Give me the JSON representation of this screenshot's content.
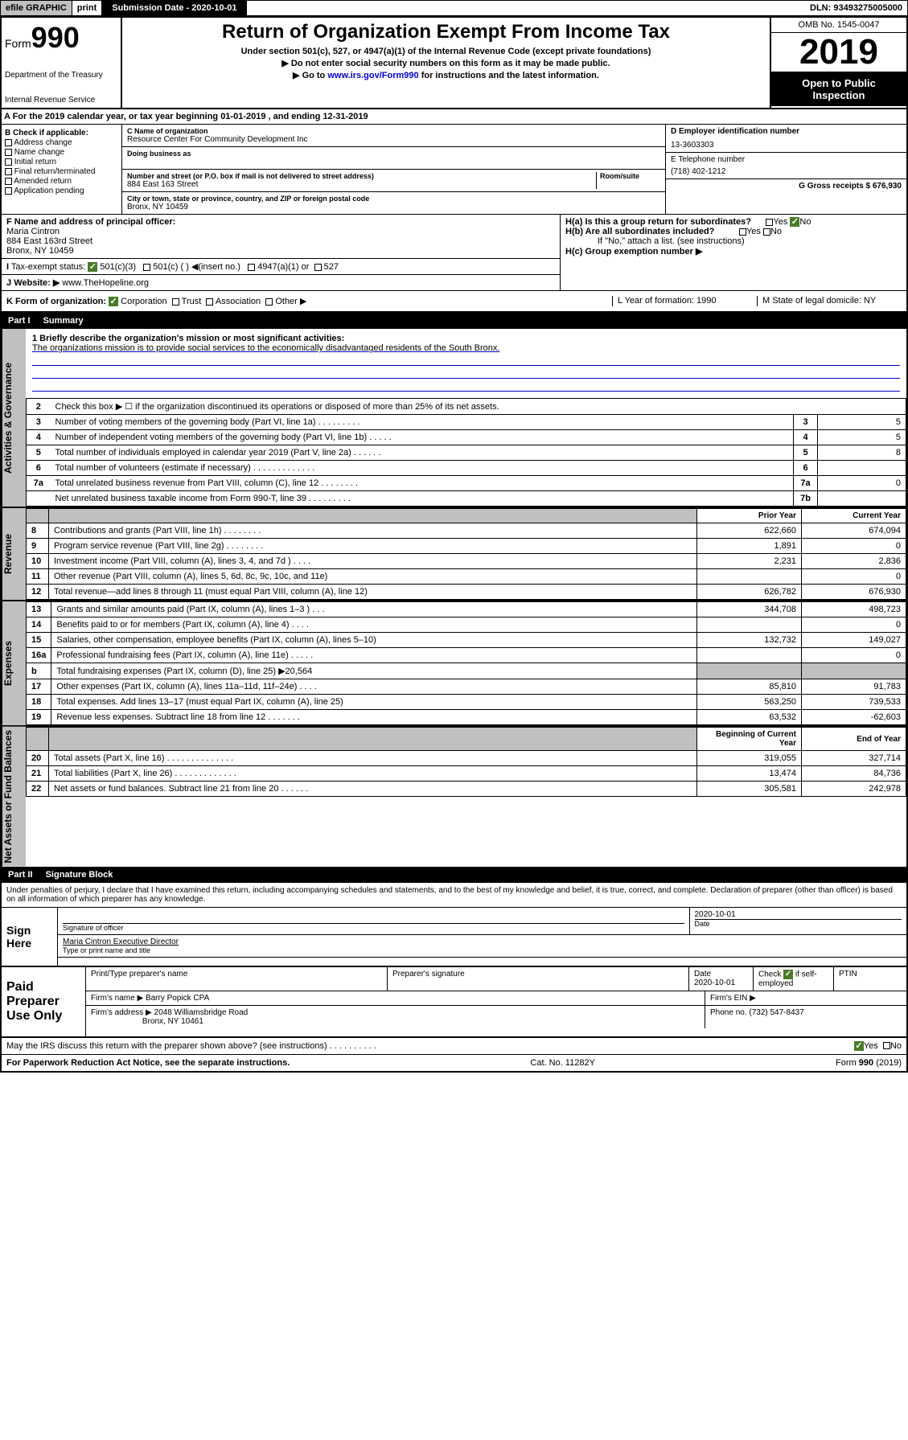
{
  "topbar": {
    "efile": "efile GRAPHIC",
    "print": "print",
    "subdate_label": "Submission Date - 2020-10-01",
    "dln": "DLN: 93493275005000"
  },
  "header": {
    "form_prefix": "Form",
    "form_number": "990",
    "dept": "Department of the Treasury",
    "irs": "Internal Revenue Service",
    "title": "Return of Organization Exempt From Income Tax",
    "sub1": "Under section 501(c), 527, or 4947(a)(1) of the Internal Revenue Code (except private foundations)",
    "sub2": "▶ Do not enter social security numbers on this form as it may be made public.",
    "sub3": "▶ Go to www.irs.gov/Form990 for instructions and the latest information.",
    "omb": "OMB No. 1545-0047",
    "year": "2019",
    "open": "Open to Public Inspection"
  },
  "row_a": "A For the 2019 calendar year, or tax year beginning 01-01-2019   , and ending 12-31-2019",
  "addr": {
    "b_label": "B Check if applicable:",
    "checks": [
      "Address change",
      "Name change",
      "Initial return",
      "Final return/terminated",
      "Amended return",
      "Application pending"
    ],
    "c_label": "C Name of organization",
    "org_name": "Resource Center For Community Development Inc",
    "dba_label": "Doing business as",
    "street_label": "Number and street (or P.O. box if mail is not delivered to street address)",
    "room_label": "Room/suite",
    "street": "884 East 163 Street",
    "city_label": "City or town, state or province, country, and ZIP or foreign postal code",
    "city": "Bronx, NY  10459",
    "d_label": "D Employer identification number",
    "ein": "13-3603303",
    "e_label": "E Telephone number",
    "phone": "(718) 402-1212",
    "g_label": "G Gross receipts $ 676,930"
  },
  "fij": {
    "f_label": "F  Name and address of principal officer:",
    "f_name": "Maria Cintron",
    "f_addr1": "884 East 163rd Street",
    "f_addr2": "Bronx, NY  10459",
    "i_label": "Tax-exempt status:",
    "i_501c3": "501(c)(3)",
    "i_501c": "501(c) (  ) ◀(insert no.)",
    "i_4947": "4947(a)(1) or",
    "i_527": "527",
    "j_label": "Website: ▶",
    "j_site": "www.TheHopeline.org",
    "ha": "H(a)  Is this a group return for subordinates?",
    "hb": "H(b)  Are all subordinates included?",
    "hb_note": "If \"No,\" attach a list. (see instructions)",
    "hc": "H(c)  Group exemption number ▶",
    "yes": "Yes",
    "no": "No"
  },
  "klm": {
    "k": "K Form of organization:",
    "k_opts": [
      "Corporation",
      "Trust",
      "Association",
      "Other ▶"
    ],
    "l": "L Year of formation: 1990",
    "m": "M State of legal domicile: NY"
  },
  "part1": {
    "label": "Part I",
    "title": "Summary"
  },
  "side_labels": {
    "ag": "Activities & Governance",
    "rev": "Revenue",
    "exp": "Expenses",
    "net": "Net Assets or Fund Balances"
  },
  "mission": {
    "q1": "1  Briefly describe the organization's mission or most significant activities:",
    "text": "The organizations mission is to provide social services to the economically disadvantaged residents of the South Bronx."
  },
  "gov_rows": [
    {
      "n": "2",
      "desc": "Check this box ▶ ☐  if the organization discontinued its operations or disposed of more than 25% of its net assets."
    },
    {
      "n": "3",
      "desc": "Number of voting members of the governing body (Part VI, line 1a)  .   .   .   .   .   .   .   .   .",
      "box": "3",
      "val": "5"
    },
    {
      "n": "4",
      "desc": "Number of independent voting members of the governing body (Part VI, line 1b)  .   .   .   .   .",
      "box": "4",
      "val": "5"
    },
    {
      "n": "5",
      "desc": "Total number of individuals employed in calendar year 2019 (Part V, line 2a)  .   .   .   .   .   .",
      "box": "5",
      "val": "8"
    },
    {
      "n": "6",
      "desc": "Total number of volunteers (estimate if necessary)  .   .   .   .   .   .   .   .   .   .   .   .   .",
      "box": "6",
      "val": ""
    },
    {
      "n": "7a",
      "desc": "Total unrelated business revenue from Part VIII, column (C), line 12  .   .   .   .   .   .   .   .",
      "box": "7a",
      "val": "0"
    },
    {
      "n": "",
      "desc": "Net unrelated business taxable income from Form 990-T, line 39  .   .   .   .   .   .   .   .   .",
      "box": "7b",
      "val": ""
    }
  ],
  "fin_headers": {
    "prior": "Prior Year",
    "current": "Current Year",
    "begin": "Beginning of Current Year",
    "end": "End of Year"
  },
  "revenue_rows": [
    {
      "n": "8",
      "desc": "Contributions and grants (Part VIII, line 1h)  .   .   .   .   .   .   .   .",
      "p": "622,660",
      "c": "674,094"
    },
    {
      "n": "9",
      "desc": "Program service revenue (Part VIII, line 2g)  .   .   .   .   .   .   .   .",
      "p": "1,891",
      "c": "0"
    },
    {
      "n": "10",
      "desc": "Investment income (Part VIII, column (A), lines 3, 4, and 7d )  .   .   .   .",
      "p": "2,231",
      "c": "2,836"
    },
    {
      "n": "11",
      "desc": "Other revenue (Part VIII, column (A), lines 5, 6d, 8c, 9c, 10c, and 11e)",
      "p": "",
      "c": "0"
    },
    {
      "n": "12",
      "desc": "Total revenue—add lines 8 through 11 (must equal Part VIII, column (A), line 12)",
      "p": "626,782",
      "c": "676,930"
    }
  ],
  "expense_rows": [
    {
      "n": "13",
      "desc": "Grants and similar amounts paid (Part IX, column (A), lines 1–3 )  .   .   .",
      "p": "344,708",
      "c": "498,723"
    },
    {
      "n": "14",
      "desc": "Benefits paid to or for members (Part IX, column (A), line 4)  .   .   .   .",
      "p": "",
      "c": "0"
    },
    {
      "n": "15",
      "desc": "Salaries, other compensation, employee benefits (Part IX, column (A), lines 5–10)",
      "p": "132,732",
      "c": "149,027"
    },
    {
      "n": "16a",
      "desc": "Professional fundraising fees (Part IX, column (A), line 11e)  .   .   .   .   .",
      "p": "",
      "c": "0"
    },
    {
      "n": "b",
      "desc": "Total fundraising expenses (Part IX, column (D), line 25) ▶20,564",
      "p": "shade",
      "c": "shade"
    },
    {
      "n": "17",
      "desc": "Other expenses (Part IX, column (A), lines 11a–11d, 11f–24e)  .   .   .   .",
      "p": "85,810",
      "c": "91,783"
    },
    {
      "n": "18",
      "desc": "Total expenses. Add lines 13–17 (must equal Part IX, column (A), line 25)",
      "p": "563,250",
      "c": "739,533"
    },
    {
      "n": "19",
      "desc": "Revenue less expenses. Subtract line 18 from line 12  .   .   .   .   .   .   .",
      "p": "63,532",
      "c": "-62,603"
    }
  ],
  "net_rows": [
    {
      "n": "20",
      "desc": "Total assets (Part X, line 16)  .   .   .   .   .   .   .   .   .   .   .   .   .   .",
      "p": "319,055",
      "c": "327,714"
    },
    {
      "n": "21",
      "desc": "Total liabilities (Part X, line 26)  .   .   .   .   .   .   .   .   .   .   .   .   .",
      "p": "13,474",
      "c": "84,736"
    },
    {
      "n": "22",
      "desc": "Net assets or fund balances. Subtract line 21 from line 20  .   .   .   .   .   .",
      "p": "305,581",
      "c": "242,978"
    }
  ],
  "part2": {
    "label": "Part II",
    "title": "Signature Block"
  },
  "sig_text": "Under penalties of perjury, I declare that I have examined this return, including accompanying schedules and statements, and to the best of my knowledge and belief, it is true, correct, and complete. Declaration of preparer (other than officer) is based on all information of which preparer has any knowledge.",
  "sign": {
    "here": "Sign Here",
    "sig_officer": "Signature of officer",
    "date": "2020-10-01",
    "date_label": "Date",
    "name": "Maria Cintron  Executive Director",
    "name_label": "Type or print name and title"
  },
  "paid": {
    "label": "Paid Preparer Use Only",
    "h1": "Print/Type preparer's name",
    "h2": "Preparer's signature",
    "h3": "Date",
    "h3v": "2020-10-01",
    "h4": "Check ☑ if self-employed",
    "h5": "PTIN",
    "firm_name_label": "Firm's name    ▶",
    "firm_name": "Barry Popick CPA",
    "firm_ein_label": "Firm's EIN ▶",
    "firm_addr_label": "Firm's address ▶",
    "firm_addr1": "2048 Williamsbridge Road",
    "firm_addr2": "Bronx, NY  10461",
    "phone_label": "Phone no. (732) 547-8437"
  },
  "discuss": "May the IRS discuss this return with the preparer shown above? (see instructions)   .   .   .   .   .   .   .   .   .   .",
  "footer": {
    "l": "For Paperwork Reduction Act Notice, see the separate instructions.",
    "m": "Cat. No. 11282Y",
    "r": "Form 990 (2019)"
  },
  "colors": {
    "link": "#0000cc",
    "black": "#000000",
    "shade": "#c0c0c0",
    "green": "#4a7a2a"
  }
}
